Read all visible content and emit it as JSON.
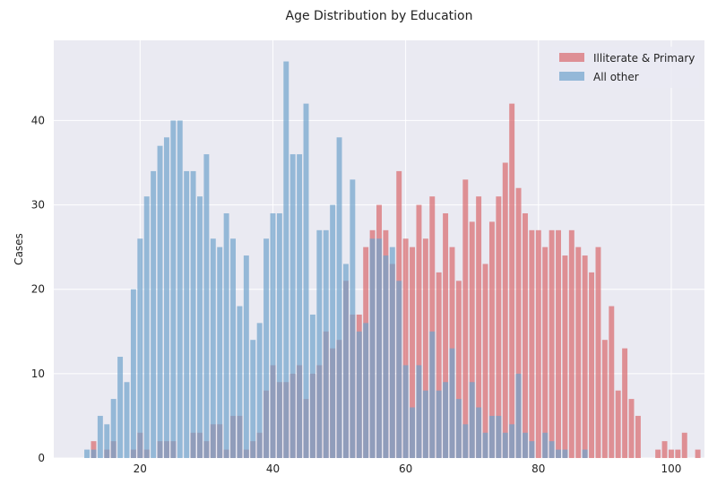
{
  "chart_data": {
    "type": "bar",
    "title": "Age Distribution by Education",
    "xlabel": "",
    "ylabel": "Cases",
    "xlim": [
      7,
      105
    ],
    "ylim": [
      0,
      49.5
    ],
    "x_ticks": [
      20,
      40,
      60,
      80,
      100
    ],
    "y_ticks": [
      0,
      10,
      20,
      30,
      40
    ],
    "grid": true,
    "legend_position": "top-right",
    "bar_width": 0.8,
    "x_start": 12,
    "series": [
      {
        "name": "Illiterate & Primary",
        "color": "#d9686c",
        "values": [
          0,
          2,
          0,
          1,
          2,
          0,
          0,
          1,
          3,
          1,
          0,
          2,
          2,
          2,
          0,
          0,
          3,
          3,
          2,
          4,
          4,
          1,
          5,
          5,
          1,
          2,
          3,
          8,
          11,
          9,
          9,
          10,
          11,
          7,
          10,
          11,
          15,
          13,
          14,
          21,
          17,
          17,
          25,
          27,
          30,
          27,
          23,
          34,
          26,
          25,
          30,
          26,
          31,
          22,
          29,
          25,
          21,
          33,
          28,
          31,
          23,
          28,
          31,
          35,
          42,
          32,
          29,
          27,
          27,
          25,
          27,
          27,
          24,
          27,
          25,
          24,
          22,
          25,
          14,
          18,
          8,
          13,
          7,
          5,
          0,
          0,
          1,
          2,
          1,
          1,
          3,
          0,
          1
        ]
      },
      {
        "name": "All other",
        "color": "#6fa3cc",
        "values": [
          1,
          1,
          5,
          4,
          7,
          12,
          9,
          20,
          26,
          31,
          34,
          37,
          38,
          40,
          40,
          34,
          34,
          31,
          36,
          26,
          25,
          29,
          26,
          18,
          24,
          14,
          16,
          26,
          29,
          29,
          47,
          36,
          36,
          42,
          17,
          27,
          27,
          30,
          38,
          23,
          33,
          15,
          16,
          26,
          26,
          24,
          25,
          21,
          11,
          6,
          11,
          8,
          15,
          8,
          9,
          13,
          7,
          4,
          9,
          6,
          3,
          5,
          5,
          3,
          4,
          10,
          3,
          2,
          0,
          3,
          2,
          1,
          1,
          0,
          0,
          1,
          0,
          0,
          0,
          0,
          0,
          0,
          0,
          0,
          0,
          0,
          0,
          0,
          0,
          0,
          0,
          0,
          0
        ]
      }
    ]
  }
}
